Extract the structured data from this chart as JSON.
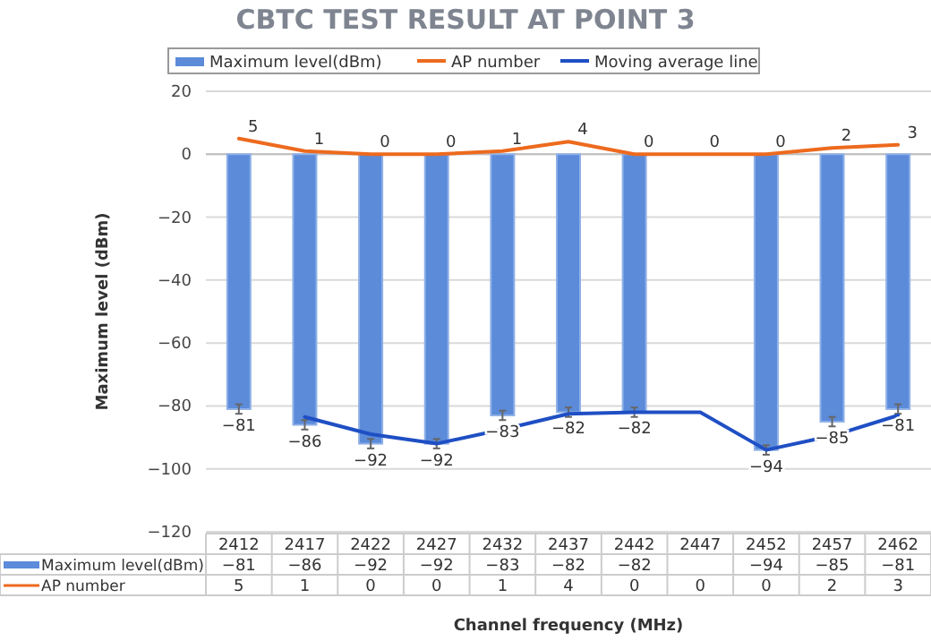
{
  "chart_data": {
    "type": "bar",
    "title": "CBTC TEST RESULT AT POINT 3",
    "xlabel": "Channel frequency (MHz)",
    "ylabel": "Maximum level (dBm)",
    "categories": [
      "2412",
      "2417",
      "2422",
      "2427",
      "2432",
      "2437",
      "2442",
      "2447",
      "2452",
      "2457",
      "2462"
    ],
    "series": [
      {
        "name": "Maximum level(dBm)",
        "color": "#5b8bd9",
        "values": [
          -81,
          -86,
          -92,
          -92,
          -83,
          -82,
          -82,
          null,
          -94,
          -85,
          -81
        ],
        "errors": [
          1.5,
          1.5,
          1.5,
          1.5,
          1.5,
          1.5,
          1.5,
          null,
          1.5,
          1.5,
          1.5
        ],
        "value_labels": [
          "−81",
          "−86",
          "−92",
          "−92",
          "−83",
          "−82",
          "−82",
          null,
          "−94",
          "−85",
          "−81"
        ]
      },
      {
        "name": "AP number",
        "type": "line",
        "color": "#ed6a1e",
        "values": [
          5,
          1,
          0,
          0,
          1,
          4,
          0,
          0,
          0,
          2,
          3
        ],
        "value_labels": [
          "5",
          "1",
          "0",
          "0",
          "1",
          "4",
          "0",
          "0",
          "0",
          "2",
          "3"
        ]
      },
      {
        "name": "Moving average line",
        "type": "line",
        "color": "#1f4fc4",
        "values": [
          null,
          -83.5,
          -89,
          -92,
          -87.5,
          -82.5,
          -82,
          -82,
          -94,
          -89.5,
          -83
        ]
      }
    ],
    "ylim": [
      -120,
      20
    ],
    "yticks": [
      {
        "value": -120,
        "label": "−120"
      },
      {
        "value": -100,
        "label": "−100"
      },
      {
        "value": -80,
        "label": "−80"
      },
      {
        "value": -60,
        "label": "−60"
      },
      {
        "value": -40,
        "label": "−40"
      },
      {
        "value": -20,
        "label": "−20"
      },
      0,
      20
    ],
    "grid": "y",
    "legend": "top",
    "marker": "none",
    "line_style": "solid"
  }
}
